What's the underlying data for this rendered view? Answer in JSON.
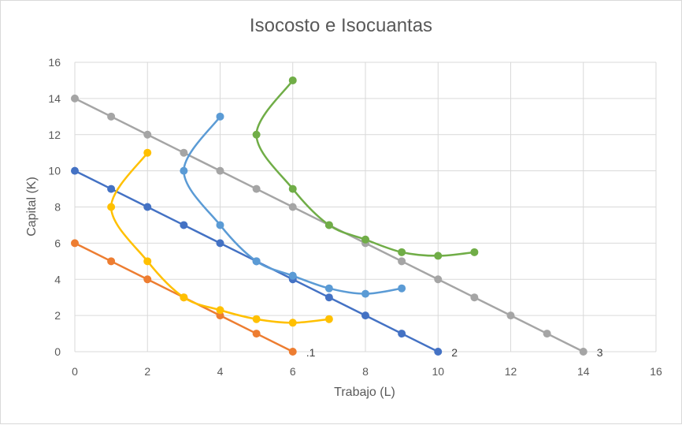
{
  "chart_data": {
    "type": "scatter",
    "title": "Isocosto e Isocuantas",
    "xlabel": "Trabajo (L)",
    "ylabel": "Capital (K)",
    "xlim": [
      0,
      16
    ],
    "ylim": [
      0,
      16
    ],
    "xticks": [
      0,
      2,
      4,
      6,
      8,
      10,
      12,
      14,
      16
    ],
    "yticks": [
      0,
      2,
      4,
      6,
      8,
      10,
      12,
      14,
      16
    ],
    "grid": true,
    "legend": "none",
    "series": [
      {
        "name": ".1",
        "color": "#ED7D31",
        "smooth": false,
        "x": [
          0,
          1,
          2,
          3,
          4,
          5,
          6
        ],
        "y": [
          6,
          5,
          4,
          3,
          2,
          1,
          0
        ]
      },
      {
        "name": "2",
        "color": "#4472C4",
        "smooth": false,
        "x": [
          0,
          1,
          2,
          3,
          4,
          5,
          6,
          7,
          8,
          9,
          10
        ],
        "y": [
          10,
          9,
          8,
          7,
          6,
          5,
          4,
          3,
          2,
          1,
          0
        ]
      },
      {
        "name": "3",
        "color": "#A5A5A5",
        "smooth": false,
        "x": [
          0,
          1,
          2,
          3,
          4,
          5,
          6,
          7,
          8,
          9,
          10,
          11,
          12,
          13,
          14
        ],
        "y": [
          14,
          13,
          12,
          11,
          10,
          9,
          8,
          7,
          6,
          5,
          4,
          3,
          2,
          1,
          0
        ]
      },
      {
        "color": "#FFC000",
        "smooth": true,
        "x": [
          2,
          1,
          2,
          3,
          4,
          5,
          6,
          7
        ],
        "y": [
          11,
          8,
          5,
          3,
          2.3,
          1.8,
          1.6,
          1.8
        ]
      },
      {
        "color": "#5B9BD5",
        "smooth": true,
        "x": [
          4,
          3,
          4,
          5,
          6,
          7,
          8,
          9
        ],
        "y": [
          13,
          10,
          7,
          5,
          4.2,
          3.5,
          3.2,
          3.5
        ]
      },
      {
        "color": "#70AD47",
        "smooth": true,
        "x": [
          6,
          5,
          6,
          7,
          8,
          9,
          10,
          11
        ],
        "y": [
          15,
          12,
          9,
          7,
          6.2,
          5.5,
          5.3,
          5.5
        ]
      }
    ]
  }
}
